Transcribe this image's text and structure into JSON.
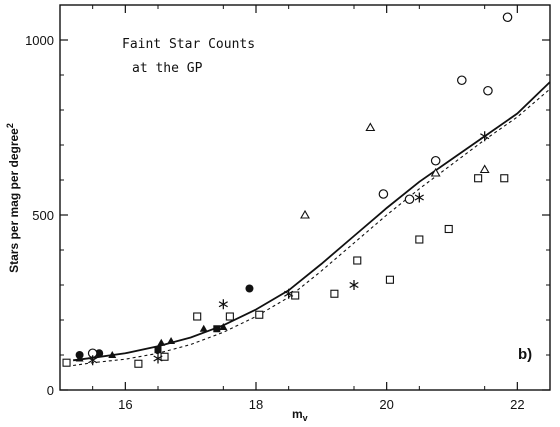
{
  "chart_data": {
    "type": "scatter",
    "title_lines": [
      "Faint Star Counts",
      "at the GP"
    ],
    "panel_label": "b)",
    "xlabel": "m",
    "xlabel_sub": "v",
    "ylabel": "Stars per mag per degree",
    "ylabel_sup": "2",
    "xlim": [
      15,
      22.5
    ],
    "ylim": [
      0,
      1100
    ],
    "xticks": [
      16,
      18,
      20,
      22
    ],
    "yticks": [
      0,
      500,
      1000
    ],
    "xtick_labels": [
      "16",
      "18",
      "20",
      "22"
    ],
    "ytick_labels": [
      "0",
      "500",
      "1000"
    ],
    "lines": [
      {
        "style": "solid",
        "points": [
          [
            15.2,
            85
          ],
          [
            15.5,
            92
          ],
          [
            16.0,
            105
          ],
          [
            16.5,
            125
          ],
          [
            17.0,
            150
          ],
          [
            17.5,
            185
          ],
          [
            18.0,
            230
          ],
          [
            18.5,
            285
          ],
          [
            19.0,
            360
          ],
          [
            19.5,
            440
          ],
          [
            20.0,
            520
          ],
          [
            20.5,
            595
          ],
          [
            21.0,
            660
          ],
          [
            21.5,
            725
          ],
          [
            22.0,
            790
          ],
          [
            22.5,
            880
          ]
        ]
      },
      {
        "style": "dotted",
        "points": [
          [
            15.2,
            70
          ],
          [
            15.5,
            78
          ],
          [
            16.0,
            88
          ],
          [
            16.5,
            105
          ],
          [
            17.0,
            130
          ],
          [
            17.5,
            165
          ],
          [
            18.0,
            210
          ],
          [
            18.5,
            265
          ],
          [
            19.0,
            340
          ],
          [
            19.5,
            420
          ],
          [
            20.0,
            500
          ],
          [
            20.5,
            575
          ],
          [
            21.0,
            645
          ],
          [
            21.5,
            715
          ],
          [
            22.0,
            780
          ],
          [
            22.5,
            860
          ]
        ]
      }
    ],
    "series": [
      {
        "marker": "filled-circle",
        "points": [
          [
            15.3,
            100
          ],
          [
            15.6,
            105
          ],
          [
            17.9,
            290
          ]
        ]
      },
      {
        "marker": "open-circle",
        "points": [
          [
            15.5,
            105
          ],
          [
            19.95,
            560
          ],
          [
            20.35,
            545
          ],
          [
            20.75,
            655
          ],
          [
            21.15,
            885
          ],
          [
            21.55,
            855
          ],
          [
            21.85,
            1065
          ]
        ]
      },
      {
        "marker": "filled-triangle",
        "points": [
          [
            15.3,
            90
          ],
          [
            15.8,
            100
          ],
          [
            16.55,
            135
          ],
          [
            16.7,
            140
          ],
          [
            17.2,
            175
          ],
          [
            17.5,
            180
          ]
        ]
      },
      {
        "marker": "open-triangle",
        "points": [
          [
            18.75,
            500
          ],
          [
            19.75,
            750
          ],
          [
            20.75,
            620
          ],
          [
            21.5,
            630
          ]
        ]
      },
      {
        "marker": "open-square",
        "points": [
          [
            15.1,
            78
          ],
          [
            16.2,
            75
          ],
          [
            16.6,
            95
          ],
          [
            17.1,
            210
          ],
          [
            17.6,
            210
          ],
          [
            18.05,
            215
          ],
          [
            18.6,
            270
          ],
          [
            19.2,
            275
          ],
          [
            19.55,
            370
          ],
          [
            20.05,
            315
          ],
          [
            20.5,
            430
          ],
          [
            20.95,
            460
          ],
          [
            21.4,
            605
          ],
          [
            21.8,
            605
          ]
        ]
      },
      {
        "marker": "filled-square",
        "points": [
          [
            16.5,
            115
          ],
          [
            17.4,
            175
          ]
        ]
      },
      {
        "marker": "asterisk",
        "points": [
          [
            15.5,
            85
          ],
          [
            16.5,
            90
          ],
          [
            17.5,
            245
          ],
          [
            18.5,
            275
          ],
          [
            19.5,
            300
          ],
          [
            20.5,
            550
          ],
          [
            21.5,
            725
          ]
        ]
      }
    ]
  }
}
